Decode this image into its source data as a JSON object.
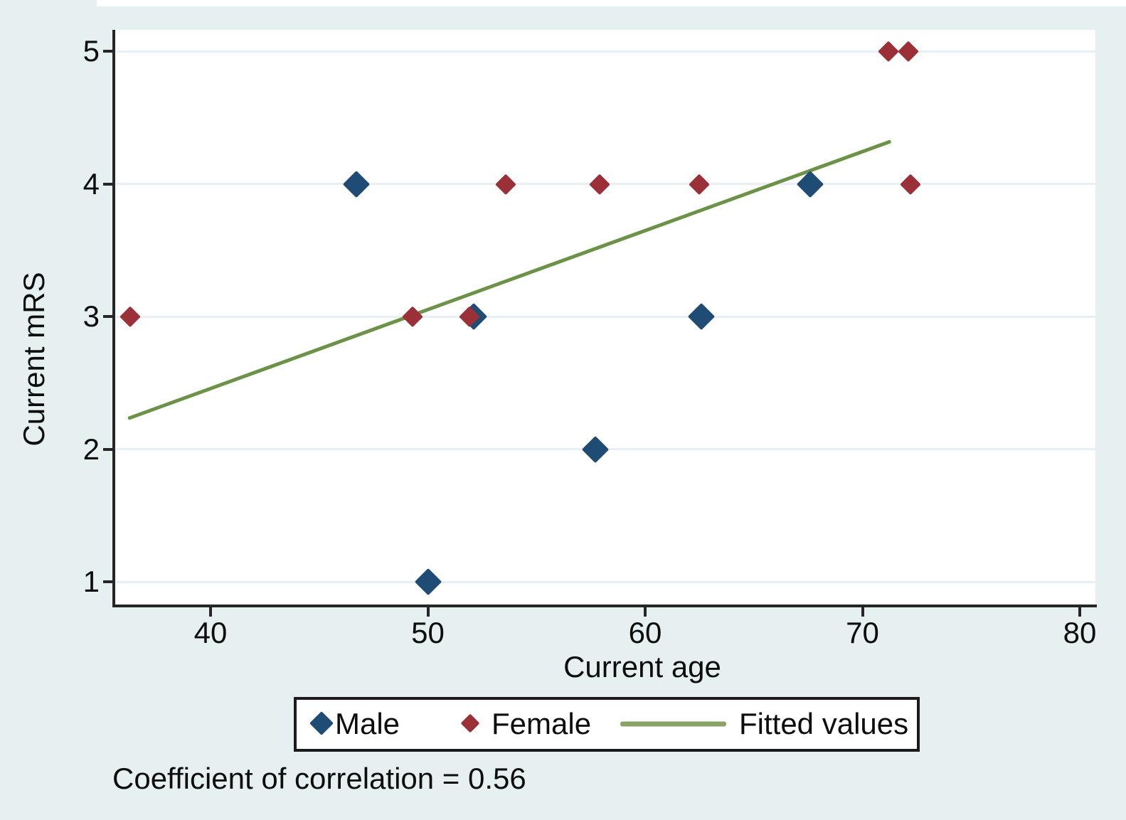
{
  "figure": {
    "caption": "Coefficient of correlation = 0.56",
    "colors": {
      "background": "#e6f0f1",
      "plot_background": "#ffffff",
      "gridline": "#e8f0f5",
      "axis": "#262626",
      "text": "#0d0d0d"
    }
  },
  "chart_data": {
    "type": "scatter",
    "title": "",
    "xlabel": "Current age",
    "ylabel": "Current mRS",
    "xlim": [
      35.6,
      80.7
    ],
    "ylim": [
      0.83,
      5.16
    ],
    "x_ticks": [
      40,
      50,
      60,
      70,
      80
    ],
    "y_ticks": [
      1,
      2,
      3,
      4,
      5
    ],
    "grid": "horizontal",
    "legend_position": "below",
    "series": [
      {
        "name": "Male",
        "color": "#1e4c74",
        "marker": "diamond",
        "marker_size": 38,
        "points": [
          [
            46.7,
            4
          ],
          [
            50,
            1
          ],
          [
            52.1,
            3
          ],
          [
            57.7,
            2
          ],
          [
            62.6,
            3
          ],
          [
            67.6,
            4
          ]
        ]
      },
      {
        "name": "Female",
        "color": "#9c3038",
        "marker": "diamond",
        "marker_size": 29,
        "points": [
          [
            36.3,
            3
          ],
          [
            49.3,
            3
          ],
          [
            51.9,
            3
          ],
          [
            53.6,
            4
          ],
          [
            57.9,
            4
          ],
          [
            62.5,
            4
          ],
          [
            71.2,
            5
          ],
          [
            72.1,
            5
          ],
          [
            72.2,
            4
          ]
        ]
      }
    ],
    "fit_line": {
      "name": "Fitted values",
      "color": "#6b9246",
      "legend_swatch_color": "#8aa468",
      "x": [
        36.2,
        71.3
      ],
      "y": [
        2.23,
        4.32
      ]
    }
  }
}
